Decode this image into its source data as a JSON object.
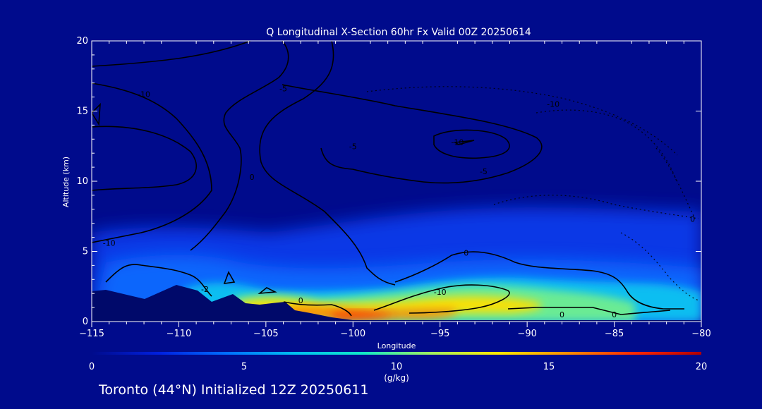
{
  "chart_data": {
    "type": "heatmap",
    "title": "Q Longitudinal X-Section 60hr  Fx Valid 00Z 20250614",
    "xlabel": "Longitude",
    "ylabel": "Altitude (km)",
    "xlim": [
      -115,
      -80
    ],
    "ylim": [
      0,
      20
    ],
    "x_ticks": [
      -115,
      -110,
      -105,
      -100,
      -95,
      -90,
      -85,
      -80
    ],
    "y_ticks": [
      0,
      5,
      10,
      15,
      20
    ],
    "grid": false,
    "colorbar": {
      "label": "(g/kg)",
      "range": [
        0,
        20
      ],
      "ticks": [
        0,
        5,
        10,
        15,
        20
      ],
      "colors": [
        "#000b8c",
        "#0020e0",
        "#0070ff",
        "#00c0f0",
        "#10e8c8",
        "#a0f060",
        "#ffe800",
        "#ff9000",
        "#ff2800",
        "#b00000"
      ]
    },
    "shaded_field": [
      {
        "x": -114.5,
        "y": 3.2,
        "q": 4.0
      },
      {
        "x": -108.5,
        "y": 3.5,
        "q": 5.5
      },
      {
        "x": -105.0,
        "y": 1.6,
        "q": 11.5
      },
      {
        "x": -101.5,
        "y": 0.9,
        "q": 14.5
      },
      {
        "x": -99.5,
        "y": 0.6,
        "q": 17.0
      },
      {
        "x": -96.5,
        "y": 1.0,
        "q": 13.0
      },
      {
        "x": -93.0,
        "y": 1.9,
        "q": 10.5
      },
      {
        "x": -90.0,
        "y": 2.4,
        "q": 9.0
      },
      {
        "x": -86.5,
        "y": 2.2,
        "q": 8.0
      },
      {
        "x": -82.5,
        "y": 2.5,
        "q": 6.5
      },
      {
        "x": -95.0,
        "y": 5.0,
        "q": 3.5
      },
      {
        "x": -112.0,
        "y": 6.0,
        "q": 2.0
      },
      {
        "x": -84.0,
        "y": 6.0,
        "q": 1.5
      }
    ],
    "contour_labels": [
      {
        "text": "-10",
        "x": -112.0,
        "y": 16.2
      },
      {
        "text": "-5",
        "x": -104.0,
        "y": 16.6
      },
      {
        "text": "-5",
        "x": -100.0,
        "y": 12.5
      },
      {
        "text": "0",
        "x": -105.8,
        "y": 10.3
      },
      {
        "text": "-10",
        "x": -94.0,
        "y": 12.8
      },
      {
        "text": "-5",
        "x": -92.5,
        "y": 10.7
      },
      {
        "text": "-10",
        "x": -88.5,
        "y": 15.5
      },
      {
        "text": "-10",
        "x": -114.0,
        "y": 5.6
      },
      {
        "text": "0",
        "x": -93.5,
        "y": 4.9
      },
      {
        "text": "-2",
        "x": -108.5,
        "y": 2.3
      },
      {
        "text": "0",
        "x": -103.0,
        "y": 1.5
      },
      {
        "text": "-10",
        "x": -95.0,
        "y": 2.1
      },
      {
        "text": "0",
        "x": -88.0,
        "y": 0.5
      },
      {
        "text": "0",
        "x": -85.0,
        "y": 0.5
      },
      {
        "text": "0",
        "x": -80.5,
        "y": 7.3
      }
    ]
  },
  "footer": {
    "caption": "Toronto (44°N) Initialized 12Z 20250611"
  }
}
